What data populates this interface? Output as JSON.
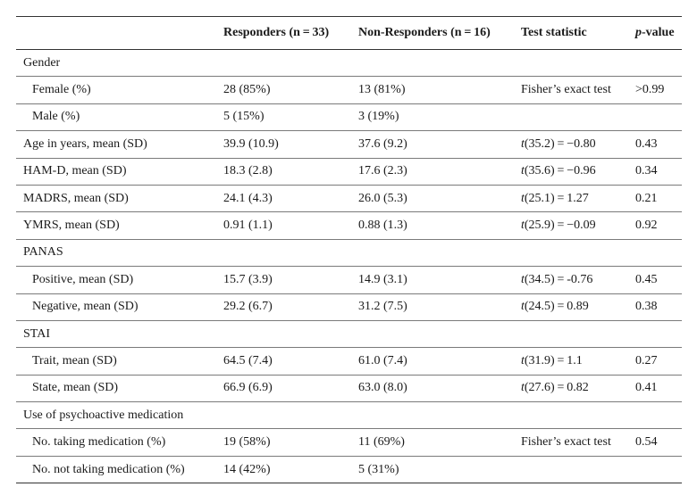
{
  "header": {
    "col1": "",
    "col2": "Responders (n = 33)",
    "col3": "Non-Responders (n = 16)",
    "col4": "Test statistic",
    "col5_italic": "p",
    "col5_rest": "-value"
  },
  "rows": [
    {
      "label": "Gender",
      "resp": "",
      "nonresp": "",
      "stat": "",
      "p": ""
    },
    {
      "label": "Female (%)",
      "resp": "28 (85%)",
      "nonresp": "13 (81%)",
      "stat": "Fisher’s exact test",
      "p": ">0.99"
    },
    {
      "label": "Male (%)",
      "resp": "5 (15%)",
      "nonresp": "3 (19%)",
      "stat": "",
      "p": ""
    },
    {
      "label": "Age in years, mean (SD)",
      "resp": "39.9 (10.9)",
      "nonresp": "37.6 (9.2)",
      "stat_t": "t",
      "stat": "(35.2) = −0.80",
      "p": "0.43"
    },
    {
      "label": "HAM-D, mean (SD)",
      "resp": "18.3 (2.8)",
      "nonresp": "17.6 (2.3)",
      "stat_t": "t",
      "stat": "(35.6) = −0.96",
      "p": "0.34"
    },
    {
      "label": "MADRS, mean (SD)",
      "resp": "24.1 (4.3)",
      "nonresp": "26.0 (5.3)",
      "stat_t": "t",
      "stat": "(25.1) = 1.27",
      "p": "0.21"
    },
    {
      "label": "YMRS, mean (SD)",
      "resp": "0.91 (1.1)",
      "nonresp": "0.88 (1.3)",
      "stat_t": "t",
      "stat": "(25.9) = −0.09",
      "p": "0.92"
    },
    {
      "label": "PANAS",
      "resp": "",
      "nonresp": "",
      "stat": "",
      "p": ""
    },
    {
      "label": "Positive, mean (SD)",
      "resp": "15.7 (3.9)",
      "nonresp": "14.9 (3.1)",
      "stat_t": "t",
      "stat": "(34.5) = -0.76",
      "p": "0.45"
    },
    {
      "label": "Negative, mean (SD)",
      "resp": "29.2 (6.7)",
      "nonresp": "31.2 (7.5)",
      "stat_t": "t",
      "stat": "(24.5) = 0.89",
      "p": "0.38"
    },
    {
      "label": "STAI",
      "resp": "",
      "nonresp": "",
      "stat": "",
      "p": ""
    },
    {
      "label": "Trait, mean (SD)",
      "resp": "64.5 (7.4)",
      "nonresp": "61.0 (7.4)",
      "stat_t": "t",
      "stat": "(31.9) = 1.1",
      "p": "0.27"
    },
    {
      "label": "State, mean (SD)",
      "resp": "66.9 (6.9)",
      "nonresp": "63.0 (8.0)",
      "stat_t": "t",
      "stat": "(27.6) = 0.82",
      "p": "0.41"
    },
    {
      "label": "Use of psychoactive medication",
      "resp": "",
      "nonresp": "",
      "stat": "",
      "p": ""
    },
    {
      "label": "No. taking medication (%)",
      "resp": "19 (58%)",
      "nonresp": "11 (69%)",
      "stat": "Fisher’s exact test",
      "p": "0.54"
    },
    {
      "label": "No. not taking medication (%)",
      "resp": "14 (42%)",
      "nonresp": "5 (31%)",
      "stat": "",
      "p": ""
    }
  ]
}
